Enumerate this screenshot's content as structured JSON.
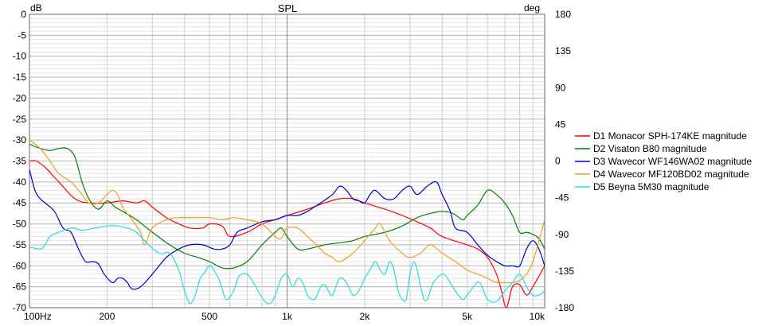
{
  "chart_data": {
    "type": "line",
    "title": "SPL",
    "y_unit_label": "dB",
    "y2_unit_label": "deg",
    "xscale": "log",
    "xlim": [
      100,
      10000
    ],
    "ylim": [
      -70,
      0
    ],
    "y2lim": [
      -180,
      180
    ],
    "grid": true,
    "legend_position": "right",
    "x_tick_labels": [
      {
        "value": 100,
        "label": "100Hz"
      },
      {
        "value": 200,
        "label": "200"
      },
      {
        "value": 500,
        "label": "500"
      },
      {
        "value": 1000,
        "label": "1k"
      },
      {
        "value": 2000,
        "label": "2k"
      },
      {
        "value": 5000,
        "label": "5k"
      },
      {
        "value": 10000,
        "label": "10k"
      }
    ],
    "y_tick_labels": [
      "0",
      "-5",
      "-10",
      "-15",
      "-20",
      "-25",
      "-30",
      "-35",
      "-40",
      "-45",
      "-50",
      "-55",
      "-60",
      "-65",
      "-70"
    ],
    "y2_tick_labels": [
      "180",
      "135",
      "90",
      "45",
      "0",
      "-45",
      "-90",
      "-135",
      "-180"
    ],
    "series": [
      {
        "name": "D1 Monacor SPH-174KE magnitude",
        "color": "#ff0000",
        "points": [
          [
            100,
            -35
          ],
          [
            106,
            -35
          ],
          [
            115,
            -36.5
          ],
          [
            130,
            -40
          ],
          [
            150,
            -44
          ],
          [
            170,
            -45
          ],
          [
            200,
            -45
          ],
          [
            230,
            -44.5
          ],
          [
            260,
            -45
          ],
          [
            280,
            -44.5
          ],
          [
            300,
            -46
          ],
          [
            340,
            -48.5
          ],
          [
            380,
            -50
          ],
          [
            420,
            -51
          ],
          [
            470,
            -51
          ],
          [
            500,
            -50
          ],
          [
            560,
            -50.5
          ],
          [
            600,
            -53
          ],
          [
            700,
            -52
          ],
          [
            800,
            -50
          ],
          [
            900,
            -49
          ],
          [
            1000,
            -48
          ],
          [
            1200,
            -46.5
          ],
          [
            1400,
            -45
          ],
          [
            1600,
            -44
          ],
          [
            1800,
            -44
          ],
          [
            2000,
            -45
          ],
          [
            2400,
            -46.5
          ],
          [
            2800,
            -48
          ],
          [
            3200,
            -49.5
          ],
          [
            3600,
            -51
          ],
          [
            4000,
            -53
          ],
          [
            5000,
            -55
          ],
          [
            5500,
            -56
          ],
          [
            6000,
            -58
          ],
          [
            6500,
            -62
          ],
          [
            6800,
            -66
          ],
          [
            7100,
            -70
          ],
          [
            7500,
            -65
          ],
          [
            8000,
            -64.5
          ],
          [
            8500,
            -67
          ],
          [
            9000,
            -65
          ],
          [
            10000,
            -60
          ]
        ]
      },
      {
        "name": "D2 Visaton B80 magnitude",
        "color": "#008000",
        "points": [
          [
            100,
            -31
          ],
          [
            110,
            -32
          ],
          [
            120,
            -32.5
          ],
          [
            130,
            -32
          ],
          [
            140,
            -32
          ],
          [
            150,
            -34
          ],
          [
            160,
            -40
          ],
          [
            170,
            -44
          ],
          [
            185,
            -46.5
          ],
          [
            200,
            -44.5
          ],
          [
            215,
            -46
          ],
          [
            230,
            -47
          ],
          [
            260,
            -49
          ],
          [
            300,
            -52
          ],
          [
            350,
            -55
          ],
          [
            400,
            -57
          ],
          [
            450,
            -58
          ],
          [
            500,
            -59
          ],
          [
            560,
            -60.5
          ],
          [
            620,
            -60.5
          ],
          [
            700,
            -59
          ],
          [
            800,
            -55
          ],
          [
            900,
            -52
          ],
          [
            950,
            -51
          ],
          [
            1000,
            -53
          ],
          [
            1100,
            -56
          ],
          [
            1200,
            -56
          ],
          [
            1400,
            -55
          ],
          [
            1600,
            -54.5
          ],
          [
            1800,
            -54
          ],
          [
            2000,
            -53
          ],
          [
            2400,
            -52
          ],
          [
            2800,
            -50.5
          ],
          [
            3200,
            -48.5
          ],
          [
            3600,
            -47.5
          ],
          [
            4000,
            -47
          ],
          [
            4400,
            -47.5
          ],
          [
            4800,
            -49
          ],
          [
            5000,
            -48
          ],
          [
            5500,
            -45.5
          ],
          [
            6000,
            -42
          ],
          [
            6500,
            -43
          ],
          [
            7000,
            -45
          ],
          [
            7500,
            -48
          ],
          [
            8000,
            -52
          ],
          [
            8500,
            -52
          ],
          [
            9000,
            -52.5
          ],
          [
            9500,
            -53.5
          ],
          [
            10000,
            -56
          ]
        ]
      },
      {
        "name": "D3 Wavecor WF146WA02 magnitude",
        "color": "#0000cc",
        "points": [
          [
            100,
            -37
          ],
          [
            105,
            -42
          ],
          [
            110,
            -44
          ],
          [
            115,
            -45
          ],
          [
            125,
            -47
          ],
          [
            135,
            -51
          ],
          [
            145,
            -52
          ],
          [
            155,
            -56
          ],
          [
            165,
            -59
          ],
          [
            175,
            -59
          ],
          [
            185,
            -59.5
          ],
          [
            195,
            -62
          ],
          [
            210,
            -64
          ],
          [
            220,
            -63
          ],
          [
            230,
            -63
          ],
          [
            240,
            -64
          ],
          [
            250,
            -65.5
          ],
          [
            270,
            -65
          ],
          [
            300,
            -62
          ],
          [
            340,
            -58
          ],
          [
            380,
            -56
          ],
          [
            420,
            -55
          ],
          [
            470,
            -55
          ],
          [
            520,
            -56
          ],
          [
            560,
            -56
          ],
          [
            600,
            -55
          ],
          [
            640,
            -52
          ],
          [
            700,
            -51
          ],
          [
            800,
            -49.5
          ],
          [
            900,
            -49
          ],
          [
            1000,
            -48
          ],
          [
            1100,
            -48
          ],
          [
            1200,
            -47
          ],
          [
            1350,
            -45
          ],
          [
            1500,
            -43
          ],
          [
            1600,
            -41
          ],
          [
            1700,
            -42
          ],
          [
            1800,
            -44
          ],
          [
            1900,
            -44.5
          ],
          [
            2000,
            -45
          ],
          [
            2100,
            -43
          ],
          [
            2200,
            -42
          ],
          [
            2400,
            -44
          ],
          [
            2600,
            -44
          ],
          [
            2800,
            -42
          ],
          [
            3000,
            -41
          ],
          [
            3200,
            -43
          ],
          [
            3500,
            -41
          ],
          [
            3800,
            -40
          ],
          [
            4000,
            -43
          ],
          [
            4300,
            -47
          ],
          [
            4500,
            -51
          ],
          [
            5000,
            -52
          ],
          [
            5500,
            -55
          ],
          [
            6000,
            -57.5
          ],
          [
            6500,
            -59
          ],
          [
            7000,
            -60
          ],
          [
            7500,
            -60
          ],
          [
            8000,
            -60
          ],
          [
            8500,
            -56
          ],
          [
            9000,
            -54
          ],
          [
            9500,
            -56
          ],
          [
            10000,
            -60
          ]
        ]
      },
      {
        "name": "D4 Wavecor MF120BD02 magnitude",
        "color": "#f0a020",
        "points": [
          [
            100,
            -30
          ],
          [
            110,
            -32
          ],
          [
            120,
            -35
          ],
          [
            130,
            -38
          ],
          [
            145,
            -40
          ],
          [
            160,
            -43
          ],
          [
            170,
            -45
          ],
          [
            185,
            -45
          ],
          [
            200,
            -43
          ],
          [
            210,
            -42
          ],
          [
            220,
            -43
          ],
          [
            230,
            -46
          ],
          [
            250,
            -49
          ],
          [
            270,
            -52
          ],
          [
            280,
            -55
          ],
          [
            300,
            -51
          ],
          [
            340,
            -49
          ],
          [
            380,
            -48.5
          ],
          [
            450,
            -48.5
          ],
          [
            500,
            -48.5
          ],
          [
            560,
            -49
          ],
          [
            620,
            -48.5
          ],
          [
            700,
            -49
          ],
          [
            800,
            -50
          ],
          [
            900,
            -53
          ],
          [
            950,
            -53.5
          ],
          [
            1000,
            -51
          ],
          [
            1100,
            -51
          ],
          [
            1200,
            -53
          ],
          [
            1300,
            -55
          ],
          [
            1400,
            -57
          ],
          [
            1500,
            -58
          ],
          [
            1600,
            -59
          ],
          [
            1800,
            -57
          ],
          [
            2000,
            -54
          ],
          [
            2200,
            -51
          ],
          [
            2300,
            -50
          ],
          [
            2500,
            -54
          ],
          [
            2800,
            -57
          ],
          [
            3000,
            -58
          ],
          [
            3300,
            -57
          ],
          [
            3600,
            -55
          ],
          [
            4000,
            -57
          ],
          [
            4500,
            -59
          ],
          [
            5000,
            -61
          ],
          [
            5500,
            -62
          ],
          [
            6000,
            -63
          ],
          [
            6500,
            -64
          ],
          [
            7000,
            -64
          ],
          [
            7500,
            -64
          ],
          [
            8000,
            -63.5
          ],
          [
            8500,
            -62
          ],
          [
            9000,
            -59
          ],
          [
            9500,
            -54
          ],
          [
            10000,
            -49
          ]
        ]
      },
      {
        "name": "D5 Beyna 5M30 magnitude",
        "color": "#22dddd",
        "points": [
          [
            100,
            -55.5
          ],
          [
            110,
            -56
          ],
          [
            115,
            -55
          ],
          [
            120,
            -53
          ],
          [
            130,
            -52
          ],
          [
            145,
            -51
          ],
          [
            160,
            -51.5
          ],
          [
            180,
            -51
          ],
          [
            200,
            -50.5
          ],
          [
            220,
            -50.5
          ],
          [
            240,
            -51
          ],
          [
            260,
            -52
          ],
          [
            290,
            -55
          ],
          [
            320,
            -57
          ],
          [
            350,
            -57
          ],
          [
            380,
            -61
          ],
          [
            400,
            -66
          ],
          [
            420,
            -69
          ],
          [
            440,
            -67
          ],
          [
            460,
            -63
          ],
          [
            480,
            -61.5
          ],
          [
            500,
            -60
          ],
          [
            520,
            -61
          ],
          [
            550,
            -64
          ],
          [
            580,
            -68
          ],
          [
            620,
            -66
          ],
          [
            650,
            -62.5
          ],
          [
            700,
            -62
          ],
          [
            740,
            -64
          ],
          [
            780,
            -66.5
          ],
          [
            820,
            -68.5
          ],
          [
            860,
            -69
          ],
          [
            900,
            -67
          ],
          [
            950,
            -63
          ],
          [
            1000,
            -62
          ],
          [
            1050,
            -65
          ],
          [
            1100,
            -63
          ],
          [
            1150,
            -64
          ],
          [
            1200,
            -67
          ],
          [
            1280,
            -68
          ],
          [
            1350,
            -65
          ],
          [
            1400,
            -64.5
          ],
          [
            1450,
            -66
          ],
          [
            1500,
            -67
          ],
          [
            1600,
            -63
          ],
          [
            1700,
            -64
          ],
          [
            1800,
            -67
          ],
          [
            1900,
            -66
          ],
          [
            2000,
            -63
          ],
          [
            2100,
            -61
          ],
          [
            2200,
            -59
          ],
          [
            2300,
            -61
          ],
          [
            2400,
            -62
          ],
          [
            2500,
            -59
          ],
          [
            2600,
            -61
          ],
          [
            2700,
            -66
          ],
          [
            2800,
            -68
          ],
          [
            2900,
            -68
          ],
          [
            3000,
            -62
          ],
          [
            3100,
            -59
          ],
          [
            3200,
            -61
          ],
          [
            3300,
            -65
          ],
          [
            3400,
            -68
          ],
          [
            3500,
            -68
          ],
          [
            3700,
            -64
          ],
          [
            4000,
            -62
          ],
          [
            4200,
            -63
          ],
          [
            4500,
            -66
          ],
          [
            4800,
            -68
          ],
          [
            5000,
            -67
          ],
          [
            5300,
            -65
          ],
          [
            5600,
            -64
          ],
          [
            6000,
            -68
          ],
          [
            6500,
            -68.5
          ],
          [
            7000,
            -66
          ],
          [
            7500,
            -64
          ],
          [
            8000,
            -62
          ],
          [
            8500,
            -65
          ],
          [
            9000,
            -67
          ],
          [
            9500,
            -67
          ],
          [
            10000,
            -66
          ]
        ]
      }
    ]
  }
}
